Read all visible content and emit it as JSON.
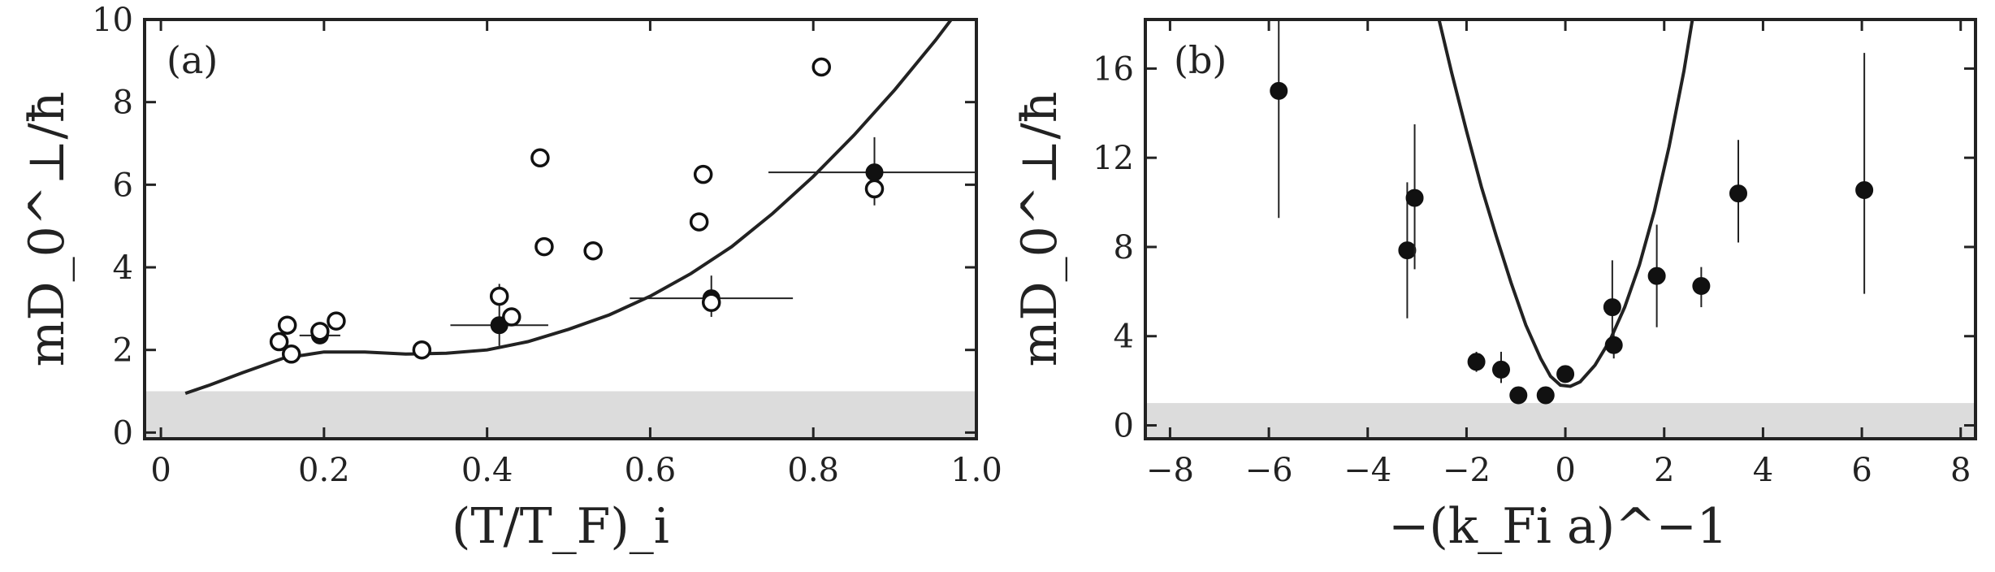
{
  "chart_data": [
    {
      "type": "scatter",
      "panel_label": "(a)",
      "xlabel": "(T/T_F)_i",
      "ylabel": "mD_0^⊥/ħ",
      "xlim": [
        -0.02,
        1.0
      ],
      "ylim": [
        -0.15,
        10.0
      ],
      "xticks": [
        0,
        0.2,
        0.4,
        0.6,
        0.8,
        1.0
      ],
      "xtick_labels": [
        "0",
        "0.2",
        "0.4",
        "0.6",
        "0.8",
        "1.0"
      ],
      "yticks": [
        0,
        2,
        4,
        6,
        8,
        10
      ],
      "ytick_labels": [
        "0",
        "2",
        "4",
        "6",
        "8",
        "10"
      ],
      "shaded_band": {
        "y_from": -0.15,
        "y_to": 1.0,
        "color": "#dcdcdc"
      },
      "series": [
        {
          "marker": "filled-circle",
          "points": [
            {
              "x": 0.195,
              "y": 2.35,
              "xerr": [
                0.17,
                0.22
              ],
              "yerr": [
                2.25,
                2.45
              ]
            },
            {
              "x": 0.415,
              "y": 2.6,
              "xerr": [
                0.355,
                0.475
              ],
              "yerr": [
                2.1,
                3.6
              ]
            },
            {
              "x": 0.675,
              "y": 3.25,
              "xerr": [
                0.575,
                0.775
              ],
              "yerr": [
                2.8,
                3.8
              ]
            },
            {
              "x": 0.875,
              "y": 6.3,
              "xerr": [
                0.745,
                1.0
              ],
              "yerr": [
                5.5,
                7.15
              ]
            }
          ]
        },
        {
          "marker": "open-circle",
          "points": [
            {
              "x": 0.145,
              "y": 2.2
            },
            {
              "x": 0.155,
              "y": 2.6
            },
            {
              "x": 0.16,
              "y": 1.9
            },
            {
              "x": 0.195,
              "y": 2.45
            },
            {
              "x": 0.215,
              "y": 2.7
            },
            {
              "x": 0.32,
              "y": 2.0
            },
            {
              "x": 0.415,
              "y": 3.3
            },
            {
              "x": 0.43,
              "y": 2.8
            },
            {
              "x": 0.465,
              "y": 6.65
            },
            {
              "x": 0.47,
              "y": 4.5
            },
            {
              "x": 0.53,
              "y": 4.4
            },
            {
              "x": 0.66,
              "y": 5.1
            },
            {
              "x": 0.665,
              "y": 6.25
            },
            {
              "x": 0.675,
              "y": 3.15
            },
            {
              "x": 0.81,
              "y": 8.85
            },
            {
              "x": 0.875,
              "y": 5.9
            }
          ]
        }
      ],
      "curve": {
        "x": [
          0.03,
          0.06,
          0.1,
          0.15,
          0.2,
          0.25,
          0.3,
          0.35,
          0.4,
          0.45,
          0.5,
          0.55,
          0.6,
          0.65,
          0.7,
          0.75,
          0.8,
          0.85,
          0.9,
          0.95,
          1.0
        ],
        "y": [
          0.95,
          1.15,
          1.45,
          1.8,
          1.95,
          1.95,
          1.9,
          1.92,
          2.0,
          2.2,
          2.5,
          2.85,
          3.3,
          3.85,
          4.5,
          5.3,
          6.2,
          7.2,
          8.3,
          9.5,
          10.8
        ]
      }
    },
    {
      "type": "scatter",
      "panel_label": "(b)",
      "xlabel": "−(k_Fi a)^−1",
      "ylabel": "mD_0^⊥/ħ",
      "xlim": [
        -8.5,
        8.3
      ],
      "ylim": [
        -0.6,
        18.2
      ],
      "xticks": [
        -8,
        -6,
        -4,
        -2,
        0,
        2,
        4,
        6,
        8
      ],
      "xtick_labels": [
        "−8",
        "−6",
        "−4",
        "−2",
        "0",
        "2",
        "4",
        "6",
        "8"
      ],
      "yticks": [
        0,
        4,
        8,
        12,
        16
      ],
      "ytick_labels": [
        "0",
        "4",
        "8",
        "12",
        "16"
      ],
      "shaded_band": {
        "y_from": -0.6,
        "y_to": 1.0,
        "color": "#dcdcdc"
      },
      "series": [
        {
          "marker": "filled-circle",
          "points": [
            {
              "x": -5.8,
              "y": 15.0,
              "yerr": [
                9.3,
                18.2
              ]
            },
            {
              "x": -3.2,
              "y": 7.85,
              "yerr": [
                4.8,
                10.9
              ]
            },
            {
              "x": -3.05,
              "y": 10.2,
              "yerr": [
                7.0,
                13.5
              ]
            },
            {
              "x": -1.8,
              "y": 2.85,
              "yerr": [
                2.4,
                3.3
              ]
            },
            {
              "x": -1.3,
              "y": 2.5,
              "yerr": [
                1.9,
                3.3
              ]
            },
            {
              "x": -0.95,
              "y": 1.35,
              "yerr": [
                1.2,
                1.5
              ]
            },
            {
              "x": -0.4,
              "y": 1.35,
              "yerr": [
                1.2,
                1.5
              ]
            },
            {
              "x": 0.0,
              "y": 2.3,
              "yerr": [
                2.0,
                2.6
              ]
            },
            {
              "x": 0.95,
              "y": 5.3,
              "yerr": [
                3.6,
                7.4
              ]
            },
            {
              "x": 0.98,
              "y": 3.6,
              "yerr": [
                3.0,
                4.2
              ]
            },
            {
              "x": 1.85,
              "y": 6.7,
              "yerr": [
                4.4,
                9.0
              ]
            },
            {
              "x": 2.75,
              "y": 6.25,
              "yerr": [
                5.3,
                7.1
              ]
            },
            {
              "x": 3.5,
              "y": 10.4,
              "yerr": [
                8.2,
                12.8
              ]
            },
            {
              "x": 6.05,
              "y": 10.55,
              "yerr": [
                5.9,
                16.7
              ]
            }
          ]
        }
      ],
      "curve": {
        "x": [
          -2.6,
          -2.3,
          -2.0,
          -1.7,
          -1.4,
          -1.1,
          -0.8,
          -0.5,
          -0.3,
          -0.1,
          0.1,
          0.3,
          0.6,
          0.9,
          1.2,
          1.5,
          1.8,
          2.1,
          2.4,
          2.6
        ],
        "y": [
          18.6,
          15.8,
          13.2,
          10.7,
          8.5,
          6.4,
          4.5,
          3.0,
          2.2,
          1.8,
          1.75,
          1.95,
          2.7,
          3.8,
          5.3,
          7.2,
          9.6,
          12.5,
          15.9,
          18.6
        ]
      }
    }
  ]
}
